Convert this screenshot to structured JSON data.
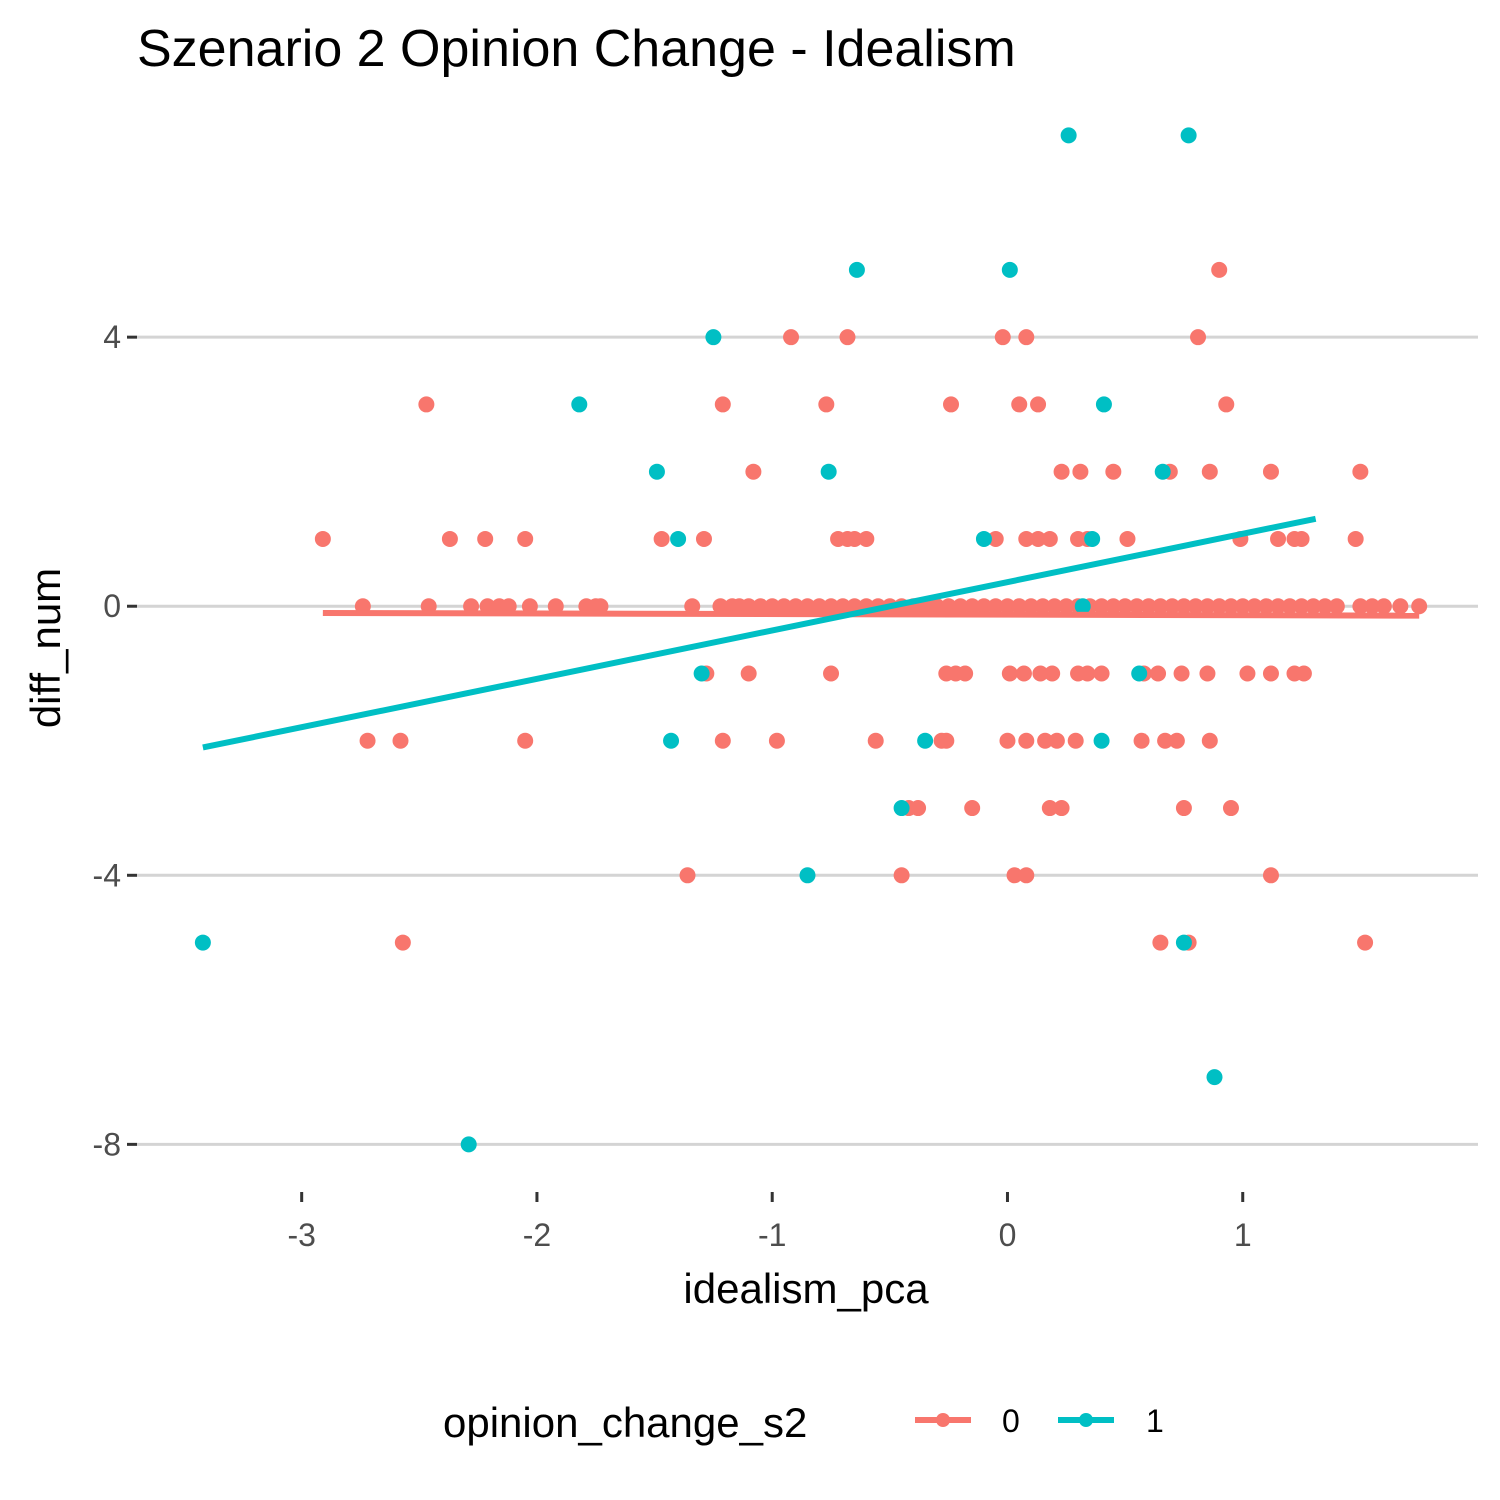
{
  "chart_data": {
    "type": "scatter",
    "title": "Szenario 2 Opinion Change - Idealism",
    "xlabel": "idealism_pca",
    "ylabel": "diff_num",
    "xlim": [
      -3.7,
      2.0
    ],
    "ylim": [
      -8.5,
      7.6
    ],
    "x_ticks": [
      -3,
      -2,
      -1,
      0,
      1
    ],
    "x_tick_labels": [
      "-3",
      "-2",
      "-1",
      "0",
      "1"
    ],
    "y_ticks": [
      -8,
      -4,
      0,
      4
    ],
    "y_tick_labels": [
      "-8",
      "-4",
      "0",
      "4"
    ],
    "grid": "horizontal major",
    "legend": {
      "title": "opinion_change_s2",
      "position": "bottom",
      "entries": [
        "0",
        "1"
      ]
    },
    "colors": {
      "0": "#F8766D",
      "1": "#00BFC4"
    },
    "series": [
      {
        "name": "0",
        "points": [
          [
            -2.47,
            3
          ],
          [
            -2.91,
            1
          ],
          [
            -2.37,
            1
          ],
          [
            -2.22,
            1
          ],
          [
            -2.05,
            1
          ],
          [
            -2.74,
            0
          ],
          [
            -2.46,
            0
          ],
          [
            -2.28,
            0
          ],
          [
            -2.21,
            0
          ],
          [
            -2.16,
            0
          ],
          [
            -2.12,
            0
          ],
          [
            -2.03,
            0
          ],
          [
            -1.92,
            0
          ],
          [
            -1.79,
            0
          ],
          [
            -1.75,
            0
          ],
          [
            -1.73,
            0
          ],
          [
            -2.72,
            -2
          ],
          [
            -2.58,
            -2
          ],
          [
            -2.05,
            -2
          ],
          [
            -2.57,
            -5
          ],
          [
            -0.92,
            4
          ],
          [
            -0.68,
            4
          ],
          [
            -1.21,
            3
          ],
          [
            -0.77,
            3
          ],
          [
            -1.08,
            2
          ],
          [
            -1.47,
            1
          ],
          [
            -1.29,
            1
          ],
          [
            -0.72,
            1
          ],
          [
            -0.68,
            1
          ],
          [
            -0.65,
            1
          ],
          [
            -0.6,
            1
          ],
          [
            -1.34,
            0
          ],
          [
            -1.22,
            0
          ],
          [
            -1.17,
            0
          ],
          [
            -1.14,
            0
          ],
          [
            -1.1,
            0
          ],
          [
            -1.05,
            0
          ],
          [
            -1.0,
            0
          ],
          [
            -0.95,
            0
          ],
          [
            -0.9,
            0
          ],
          [
            -0.85,
            0
          ],
          [
            -0.8,
            0
          ],
          [
            -0.75,
            0
          ],
          [
            -0.7,
            0
          ],
          [
            -0.65,
            0
          ],
          [
            -0.6,
            0
          ],
          [
            -0.55,
            0
          ],
          [
            -0.5,
            0
          ],
          [
            -0.45,
            0
          ],
          [
            -0.4,
            0
          ],
          [
            -0.35,
            0
          ],
          [
            -0.3,
            0
          ],
          [
            -0.25,
            0
          ],
          [
            -0.2,
            0
          ],
          [
            -0.15,
            0
          ],
          [
            -1.28,
            -1
          ],
          [
            -1.1,
            -1
          ],
          [
            -0.75,
            -1
          ],
          [
            -1.21,
            -2
          ],
          [
            -0.98,
            -2
          ],
          [
            -0.56,
            -2
          ],
          [
            -0.28,
            -2
          ],
          [
            -0.26,
            -2
          ],
          [
            -0.42,
            -3
          ],
          [
            -0.38,
            -3
          ],
          [
            -0.15,
            -3
          ],
          [
            -1.36,
            -4
          ],
          [
            -0.45,
            -4
          ],
          [
            -0.24,
            3
          ],
          [
            -0.26,
            -1
          ],
          [
            -0.22,
            -1
          ],
          [
            -0.18,
            -1
          ],
          [
            -0.02,
            4
          ],
          [
            0.08,
            4
          ],
          [
            0.05,
            3
          ],
          [
            0.13,
            3
          ],
          [
            0.23,
            2
          ],
          [
            0.31,
            2
          ],
          [
            0.45,
            2
          ],
          [
            -0.05,
            1
          ],
          [
            0.08,
            1
          ],
          [
            0.13,
            1
          ],
          [
            0.18,
            1
          ],
          [
            0.3,
            1
          ],
          [
            0.34,
            1
          ],
          [
            0.51,
            1
          ],
          [
            -0.1,
            0
          ],
          [
            -0.05,
            0
          ],
          [
            0.0,
            0
          ],
          [
            0.05,
            0
          ],
          [
            0.1,
            0
          ],
          [
            0.15,
            0
          ],
          [
            0.2,
            0
          ],
          [
            0.25,
            0
          ],
          [
            0.3,
            0
          ],
          [
            0.35,
            0
          ],
          [
            0.4,
            0
          ],
          [
            0.45,
            0
          ],
          [
            0.5,
            0
          ],
          [
            0.55,
            0
          ],
          [
            0.6,
            0
          ],
          [
            0.65,
            0
          ],
          [
            0.7,
            0
          ],
          [
            0.75,
            0
          ],
          [
            0.8,
            0
          ],
          [
            0.85,
            0
          ],
          [
            0.9,
            0
          ],
          [
            0.95,
            0
          ],
          [
            1.0,
            0
          ],
          [
            1.05,
            0
          ],
          [
            1.1,
            0
          ],
          [
            1.15,
            0
          ],
          [
            1.2,
            0
          ],
          [
            1.25,
            0
          ],
          [
            1.3,
            0
          ],
          [
            1.35,
            0
          ],
          [
            1.4,
            0
          ],
          [
            1.5,
            0
          ],
          [
            1.55,
            0
          ],
          [
            1.6,
            0
          ],
          [
            1.67,
            0
          ],
          [
            1.75,
            0
          ],
          [
            0.01,
            -1
          ],
          [
            0.07,
            -1
          ],
          [
            0.14,
            -1
          ],
          [
            0.19,
            -1
          ],
          [
            0.3,
            -1
          ],
          [
            0.34,
            -1
          ],
          [
            0.4,
            -1
          ],
          [
            0.58,
            -1
          ],
          [
            0.64,
            -1
          ],
          [
            0.74,
            -1
          ],
          [
            0.85,
            -1
          ],
          [
            1.02,
            -1
          ],
          [
            1.12,
            -1
          ],
          [
            1.22,
            -1
          ],
          [
            1.26,
            -1
          ],
          [
            0.0,
            -2
          ],
          [
            0.08,
            -2
          ],
          [
            0.16,
            -2
          ],
          [
            0.21,
            -2
          ],
          [
            0.29,
            -2
          ],
          [
            0.57,
            -2
          ],
          [
            0.67,
            -2
          ],
          [
            0.72,
            -2
          ],
          [
            0.86,
            -2
          ],
          [
            0.18,
            -3
          ],
          [
            0.23,
            -3
          ],
          [
            0.75,
            -3
          ],
          [
            0.95,
            -3
          ],
          [
            0.03,
            -4
          ],
          [
            0.08,
            -4
          ],
          [
            1.12,
            -4
          ],
          [
            0.65,
            -5
          ],
          [
            0.77,
            -5
          ],
          [
            1.52,
            -5
          ],
          [
            0.9,
            5
          ],
          [
            0.81,
            4
          ],
          [
            0.93,
            3
          ],
          [
            0.69,
            2
          ],
          [
            0.86,
            2
          ],
          [
            1.12,
            2
          ],
          [
            1.5,
            2
          ],
          [
            0.99,
            1
          ],
          [
            1.15,
            1
          ],
          [
            1.22,
            1
          ],
          [
            1.25,
            1
          ],
          [
            1.48,
            1
          ]
        ]
      },
      {
        "name": "1",
        "points": [
          [
            -3.42,
            -5
          ],
          [
            -2.29,
            -8
          ],
          [
            -1.82,
            3
          ],
          [
            -1.49,
            2
          ],
          [
            -1.4,
            1
          ],
          [
            -1.43,
            -2
          ],
          [
            -1.3,
            -1
          ],
          [
            -1.25,
            4
          ],
          [
            -0.76,
            2
          ],
          [
            -0.64,
            5
          ],
          [
            -0.85,
            -4
          ],
          [
            -0.45,
            -3
          ],
          [
            -0.35,
            -2
          ],
          [
            -0.1,
            1
          ],
          [
            0.01,
            5
          ],
          [
            0.26,
            7
          ],
          [
            0.77,
            7
          ],
          [
            0.41,
            3
          ],
          [
            0.66,
            2
          ],
          [
            0.36,
            1
          ],
          [
            0.32,
            0
          ],
          [
            0.4,
            -2
          ],
          [
            0.56,
            -1
          ],
          [
            0.75,
            -5
          ],
          [
            0.88,
            -7
          ]
        ]
      }
    ],
    "trend_lines": [
      {
        "name": "0",
        "from": [
          -2.91,
          -0.1
        ],
        "to": [
          1.75,
          -0.14
        ]
      },
      {
        "name": "1",
        "from": [
          -3.42,
          -2.1
        ],
        "to": [
          1.31,
          1.3
        ]
      }
    ]
  }
}
